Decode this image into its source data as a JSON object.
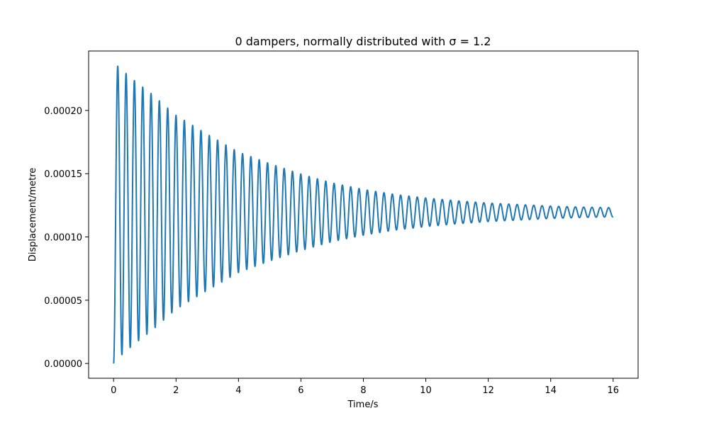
{
  "chart_data": {
    "type": "line",
    "title": "0 dampers, normally distributed with σ = 1.2",
    "xlabel": "Time/s",
    "ylabel": "Displacement/metre",
    "xlim": [
      -0.8,
      16.8
    ],
    "ylim": [
      -1.17e-05,
      0.000247
    ],
    "x_ticks": [
      0,
      2,
      4,
      6,
      8,
      10,
      12,
      14,
      16
    ],
    "x_tick_labels": [
      "0",
      "2",
      "4",
      "6",
      "8",
      "10",
      "12",
      "14",
      "16"
    ],
    "y_ticks": [
      0,
      5e-05,
      0.0001,
      0.00015,
      0.0002
    ],
    "y_tick_labels": [
      "0.00000",
      "0.00005",
      "0.00010",
      "0.00015",
      "0.00020"
    ],
    "grid": false,
    "series": [
      {
        "color": "#1f77b4",
        "period": 0.2665,
        "x": [
          0,
          0.133,
          0.266,
          0.4,
          0.533,
          0.666,
          0.8,
          1.2,
          2.0,
          3.0,
          4.0,
          5.0,
          6.0,
          7.0,
          8.0,
          9.0,
          10.0,
          11.0,
          12.0,
          13.0,
          14.0,
          15.0,
          16.0
        ],
        "equilibrium": 0.0001195,
        "amplitude": [
          0.0001195,
          0.0001155,
          0.0001126,
          0.0001097,
          0.0001069,
          0.0001042,
          0.0001015,
          9.39e-05,
          7.66e-05,
          6.17e-05,
          4.76e-05,
          3.85e-05,
          3.02e-05,
          2.32e-05,
          1.81e-05,
          1.41e-05,
          1.13e-05,
          9.1e-06,
          7.3e-06,
          6.1e-06,
          4.9e-06,
          4.1e-06,
          3.6e-06
        ]
      }
    ]
  }
}
